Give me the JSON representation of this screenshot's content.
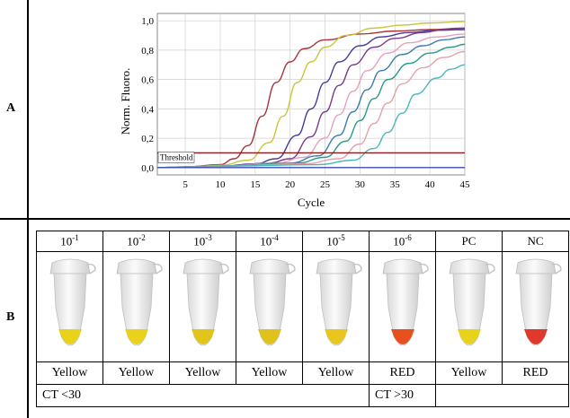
{
  "panels": {
    "a_label": "A",
    "b_label": "B"
  },
  "chart_data": {
    "type": "line",
    "ylabel": "Norm. Fluoro.",
    "xlabel": "Cycle",
    "xlim": [
      1,
      45
    ],
    "ylim": [
      -0.05,
      1.05
    ],
    "xticks": [
      "5",
      "10",
      "15",
      "20",
      "25",
      "30",
      "35",
      "40",
      "45"
    ],
    "yticks": [
      "0,0",
      "0,2",
      "0,4",
      "0,6",
      "0,8",
      "1,0"
    ],
    "threshold": {
      "label": "Threshold",
      "value": 0.1
    },
    "grid": true,
    "series": [
      {
        "color": "#a8323c",
        "values": [
          [
            1,
            0.0
          ],
          [
            5,
            0.005
          ],
          [
            10,
            0.02
          ],
          [
            12,
            0.06
          ],
          [
            14,
            0.15
          ],
          [
            16,
            0.35
          ],
          [
            18,
            0.58
          ],
          [
            20,
            0.72
          ],
          [
            22,
            0.81
          ],
          [
            25,
            0.87
          ],
          [
            30,
            0.91
          ],
          [
            35,
            0.93
          ],
          [
            40,
            0.94
          ],
          [
            45,
            0.95
          ]
        ]
      },
      {
        "color": "#c9c53a",
        "values": [
          [
            1,
            0.0
          ],
          [
            5,
            0.005
          ],
          [
            10,
            0.015
          ],
          [
            14,
            0.05
          ],
          [
            17,
            0.17
          ],
          [
            19,
            0.35
          ],
          [
            21,
            0.58
          ],
          [
            23,
            0.72
          ],
          [
            25,
            0.82
          ],
          [
            28,
            0.9
          ],
          [
            32,
            0.95
          ],
          [
            36,
            0.97
          ],
          [
            40,
            0.985
          ],
          [
            45,
            0.995
          ]
        ]
      },
      {
        "color": "#4a3a9a",
        "values": [
          [
            1,
            0.0
          ],
          [
            10,
            0.01
          ],
          [
            15,
            0.025
          ],
          [
            18,
            0.06
          ],
          [
            21,
            0.22
          ],
          [
            23,
            0.4
          ],
          [
            25,
            0.58
          ],
          [
            27,
            0.72
          ],
          [
            30,
            0.83
          ],
          [
            33,
            0.89
          ],
          [
            37,
            0.92
          ],
          [
            41,
            0.935
          ],
          [
            45,
            0.94
          ]
        ]
      },
      {
        "color": "#7a3a8a",
        "values": [
          [
            1,
            0.0
          ],
          [
            10,
            0.01
          ],
          [
            17,
            0.03
          ],
          [
            20,
            0.06
          ],
          [
            23,
            0.21
          ],
          [
            25,
            0.38
          ],
          [
            27,
            0.56
          ],
          [
            29,
            0.7
          ],
          [
            32,
            0.82
          ],
          [
            35,
            0.88
          ],
          [
            39,
            0.92
          ],
          [
            42,
            0.94
          ],
          [
            45,
            0.95
          ]
        ]
      },
      {
        "color": "#e6a0c0",
        "values": [
          [
            1,
            0.0
          ],
          [
            10,
            0.01
          ],
          [
            18,
            0.03
          ],
          [
            22,
            0.07
          ],
          [
            25,
            0.2
          ],
          [
            27,
            0.36
          ],
          [
            29,
            0.52
          ],
          [
            31,
            0.66
          ],
          [
            34,
            0.78
          ],
          [
            37,
            0.85
          ],
          [
            41,
            0.89
          ],
          [
            45,
            0.91
          ]
        ]
      },
      {
        "color": "#3a7ab0",
        "values": [
          [
            1,
            0.0
          ],
          [
            10,
            0.01
          ],
          [
            20,
            0.03
          ],
          [
            24,
            0.08
          ],
          [
            27,
            0.22
          ],
          [
            29,
            0.38
          ],
          [
            31,
            0.53
          ],
          [
            33,
            0.66
          ],
          [
            36,
            0.77
          ],
          [
            39,
            0.83
          ],
          [
            42,
            0.87
          ],
          [
            45,
            0.89
          ]
        ]
      },
      {
        "color": "#2a9a8a",
        "values": [
          [
            1,
            0.0
          ],
          [
            10,
            0.01
          ],
          [
            21,
            0.03
          ],
          [
            25,
            0.07
          ],
          [
            28,
            0.18
          ],
          [
            30,
            0.32
          ],
          [
            32,
            0.47
          ],
          [
            34,
            0.6
          ],
          [
            37,
            0.71
          ],
          [
            40,
            0.78
          ],
          [
            43,
            0.82
          ],
          [
            45,
            0.84
          ]
        ]
      },
      {
        "color": "#e8a0a8",
        "values": [
          [
            1,
            0.0
          ],
          [
            10,
            0.01
          ],
          [
            22,
            0.025
          ],
          [
            27,
            0.06
          ],
          [
            30,
            0.16
          ],
          [
            32,
            0.3
          ],
          [
            34,
            0.44
          ],
          [
            36,
            0.57
          ],
          [
            39,
            0.68
          ],
          [
            42,
            0.75
          ],
          [
            45,
            0.79
          ]
        ]
      },
      {
        "color": "#4ab8b8",
        "values": [
          [
            1,
            0.0
          ],
          [
            10,
            0.01
          ],
          [
            24,
            0.02
          ],
          [
            29,
            0.05
          ],
          [
            32,
            0.13
          ],
          [
            34,
            0.24
          ],
          [
            36,
            0.37
          ],
          [
            38,
            0.5
          ],
          [
            41,
            0.61
          ],
          [
            43,
            0.67
          ],
          [
            45,
            0.7
          ]
        ]
      },
      {
        "color": "#3a4ab0",
        "values": [
          [
            1,
            0.0
          ],
          [
            45,
            0.0
          ]
        ]
      }
    ]
  },
  "tubes": [
    {
      "label_base": "10",
      "label_exp": "-1",
      "color_word": "Yellow",
      "liquid": "#e8d21a"
    },
    {
      "label_base": "10",
      "label_exp": "-2",
      "color_word": "Yellow",
      "liquid": "#e8d21a"
    },
    {
      "label_base": "10",
      "label_exp": "-3",
      "color_word": "Yellow",
      "liquid": "#e2c51a"
    },
    {
      "label_base": "10",
      "label_exp": "-4",
      "color_word": "Yellow",
      "liquid": "#e0c21c"
    },
    {
      "label_base": "10",
      "label_exp": "-5",
      "color_word": "Yellow",
      "liquid": "#e8c61e"
    },
    {
      "label_base": "10",
      "label_exp": "-6",
      "color_word": "RED",
      "liquid": "#e8501e"
    },
    {
      "label_base": "PC",
      "label_exp": "",
      "color_word": "Yellow",
      "liquid": "#e8d21a"
    },
    {
      "label_base": "NC",
      "label_exp": "",
      "color_word": "RED",
      "liquid": "#e0382a"
    }
  ],
  "ct": {
    "low": "CT <30",
    "high": "CT >30"
  }
}
